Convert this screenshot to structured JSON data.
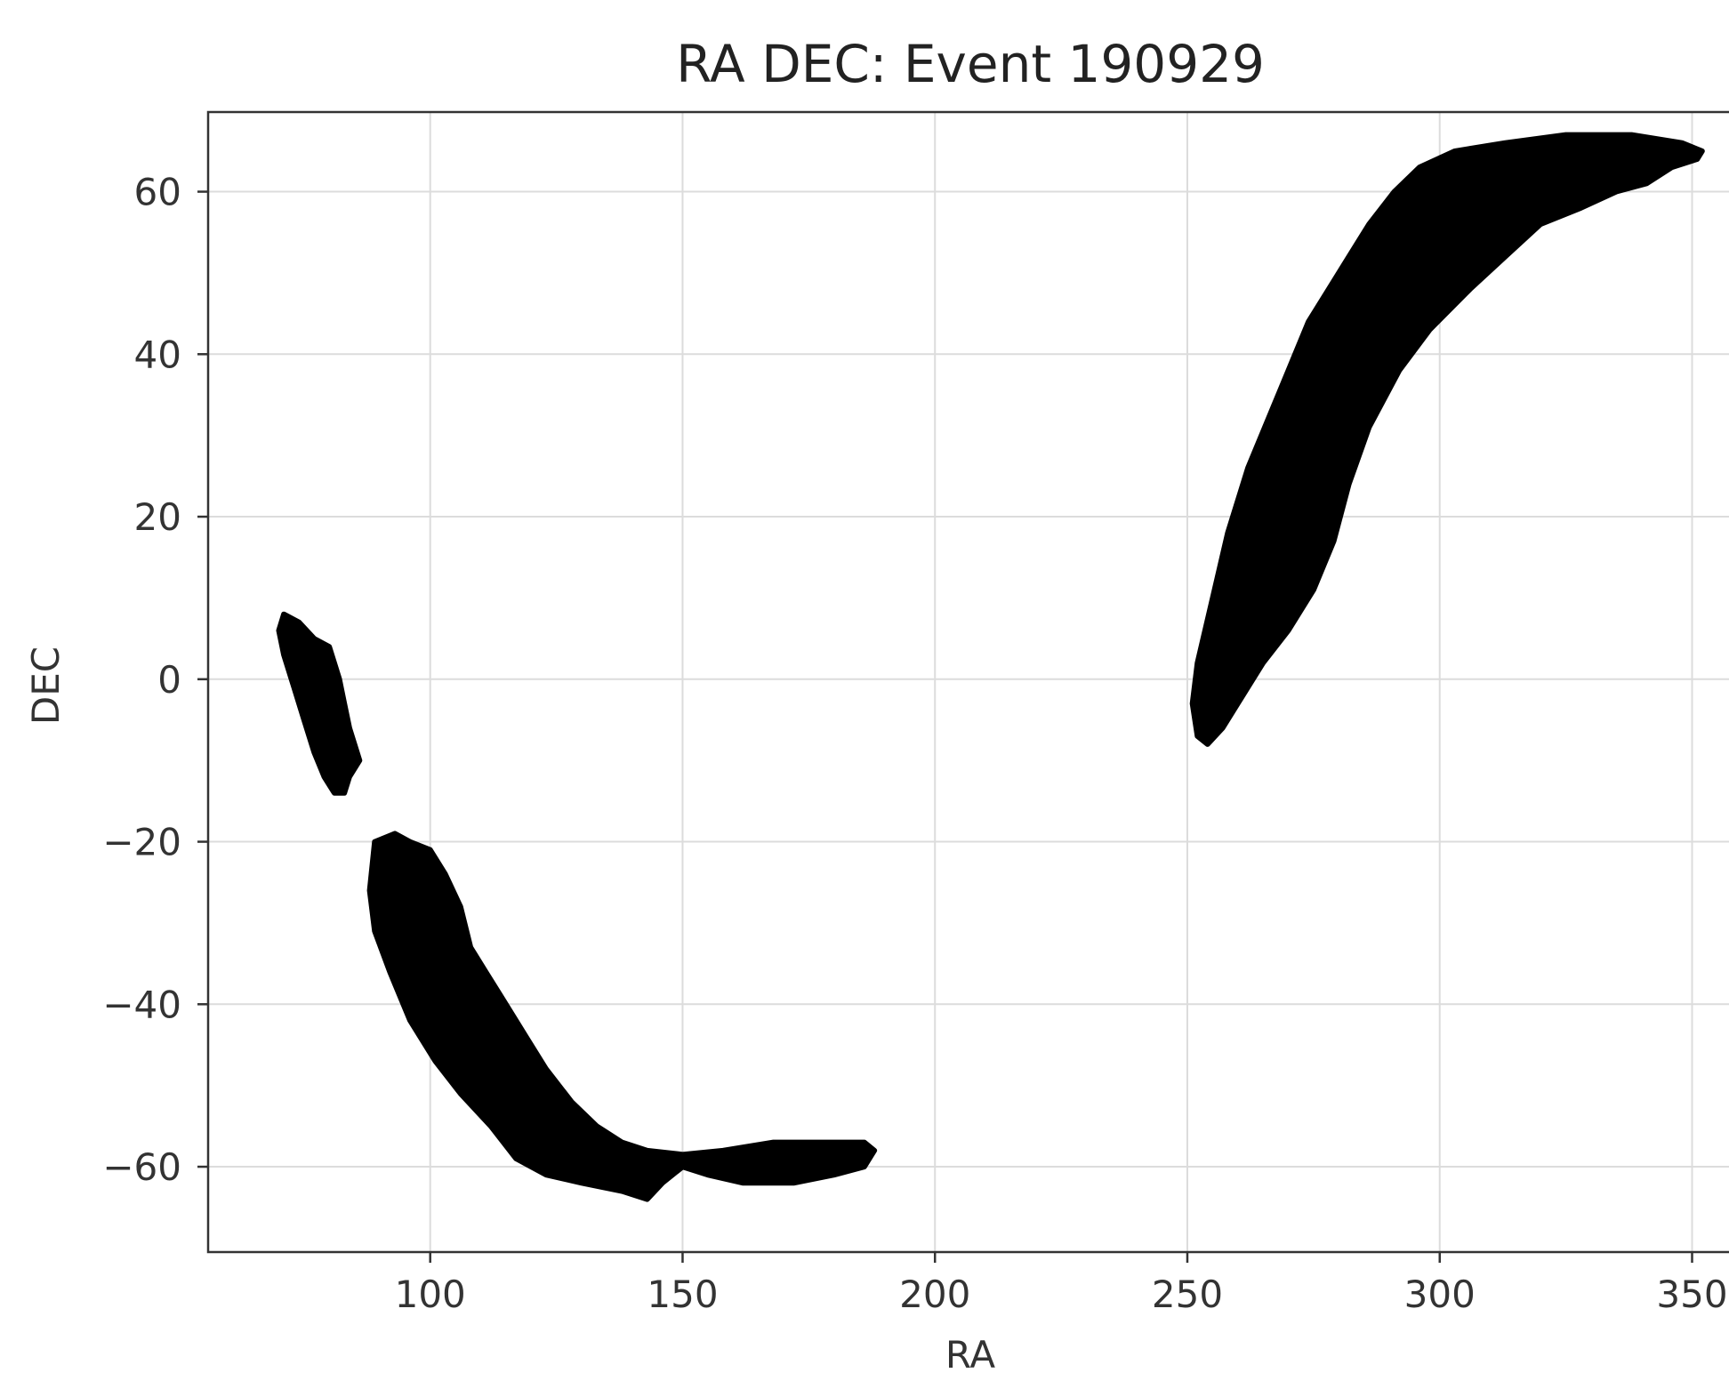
{
  "chart_data": {
    "type": "scatter",
    "title": "RA DEC: Event 190929",
    "xlabel": "RA",
    "ylabel": "DEC",
    "xlim": [
      56,
      370
    ],
    "ylim": [
      -70.5,
      69.8
    ],
    "xticks": [
      100,
      150,
      200,
      250,
      300,
      350
    ],
    "yticks": [
      -60,
      -40,
      -20,
      0,
      20,
      40,
      60
    ],
    "grid": true,
    "marker_color": "#000000",
    "series": [
      {
        "regions": [
          {
            "boundary": [
              [
                71,
                8
              ],
              [
                74,
                7
              ],
              [
                77,
                5
              ],
              [
                80,
                4
              ],
              [
                82,
                0
              ],
              [
                83,
                -3
              ],
              [
                84,
                -6
              ],
              [
                85,
                -8
              ],
              [
                86,
                -10
              ],
              [
                84,
                -12
              ],
              [
                83,
                -14
              ],
              [
                81,
                -14
              ],
              [
                79,
                -12
              ],
              [
                77,
                -9
              ],
              [
                75,
                -5
              ],
              [
                73,
                -1
              ],
              [
                71,
                3
              ],
              [
                70,
                6
              ]
            ]
          },
          {
            "boundary": [
              [
                89,
                -20
              ],
              [
                93,
                -19
              ],
              [
                96,
                -20
              ],
              [
                100,
                -21
              ],
              [
                103,
                -24
              ],
              [
                106,
                -28
              ],
              [
                108,
                -33
              ],
              [
                111,
                -36
              ],
              [
                114,
                -39
              ],
              [
                119,
                -44
              ],
              [
                123,
                -48
              ],
              [
                128,
                -52
              ],
              [
                133,
                -55
              ],
              [
                138,
                -57
              ],
              [
                143,
                -58
              ],
              [
                150,
                -58.5
              ],
              [
                158,
                -58
              ],
              [
                168,
                -57
              ],
              [
                178,
                -57
              ],
              [
                186,
                -57
              ],
              [
                188,
                -58
              ],
              [
                186,
                -60
              ],
              [
                180,
                -61
              ],
              [
                172,
                -62
              ],
              [
                162,
                -62
              ],
              [
                155,
                -61
              ],
              [
                150,
                -60
              ],
              [
                146,
                -62
              ],
              [
                143,
                -64
              ],
              [
                138,
                -63
              ],
              [
                130,
                -62
              ],
              [
                123,
                -61
              ],
              [
                117,
                -59
              ],
              [
                112,
                -55
              ],
              [
                106,
                -51
              ],
              [
                101,
                -47
              ],
              [
                96,
                -42
              ],
              [
                92,
                -36
              ],
              [
                89,
                -31
              ],
              [
                88,
                -26
              ]
            ]
          },
          {
            "boundary": [
              [
                252,
                -7
              ],
              [
                251,
                -3
              ],
              [
                252,
                2
              ],
              [
                255,
                10
              ],
              [
                258,
                18
              ],
              [
                262,
                26
              ],
              [
                266,
                32
              ],
              [
                270,
                38
              ],
              [
                274,
                44
              ],
              [
                278,
                48
              ],
              [
                282,
                52
              ],
              [
                286,
                56
              ],
              [
                291,
                60
              ],
              [
                296,
                63
              ],
              [
                303,
                65
              ],
              [
                313,
                66
              ],
              [
                325,
                67
              ],
              [
                338,
                67
              ],
              [
                348,
                66
              ],
              [
                352,
                65
              ],
              [
                351,
                64
              ],
              [
                346,
                63
              ],
              [
                341,
                61
              ],
              [
                335,
                60
              ],
              [
                328,
                58
              ],
              [
                320,
                56
              ],
              [
                313,
                52
              ],
              [
                306,
                48
              ],
              [
                298,
                43
              ],
              [
                292,
                38
              ],
              [
                286,
                31
              ],
              [
                282,
                24
              ],
              [
                279,
                17
              ],
              [
                275,
                11
              ],
              [
                270,
                6
              ],
              [
                265,
                2
              ],
              [
                260,
                -3
              ],
              [
                257,
                -6
              ],
              [
                254,
                -8
              ]
            ]
          }
        ]
      }
    ]
  }
}
